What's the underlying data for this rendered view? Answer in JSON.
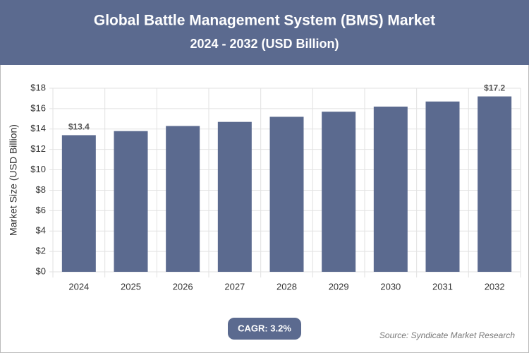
{
  "chart_data": {
    "type": "bar",
    "title": "Global Battle Management System (BMS) Market",
    "subtitle": "2024 - 2032 (USD Billion)",
    "y_label": "Market Size (USD Billion)",
    "categories": [
      "2024",
      "2025",
      "2026",
      "2027",
      "2028",
      "2029",
      "2030",
      "2031",
      "2032"
    ],
    "values": [
      13.4,
      13.8,
      14.3,
      14.7,
      15.2,
      15.7,
      16.2,
      16.7,
      17.2
    ],
    "value_labels": [
      "$13.4",
      null,
      null,
      null,
      null,
      null,
      null,
      null,
      "$17.2"
    ],
    "color": "#5b6a8f",
    "ylim": [
      0,
      18
    ],
    "yticks": [
      {
        "value": 0,
        "label": "$0"
      },
      {
        "value": 2,
        "label": "$2"
      },
      {
        "value": 4,
        "label": "$4"
      },
      {
        "value": 6,
        "label": "$6"
      },
      {
        "value": 8,
        "label": "$8"
      },
      {
        "value": 10,
        "label": "$10"
      },
      {
        "value": 12,
        "label": "$12"
      },
      {
        "value": 14,
        "label": "$14"
      },
      {
        "value": 16,
        "label": "$16"
      },
      {
        "value": 18,
        "label": "$18"
      }
    ],
    "grid": true,
    "badge": "CAGR: 3.2%",
    "source": "Source: Syndicate Market Research"
  }
}
